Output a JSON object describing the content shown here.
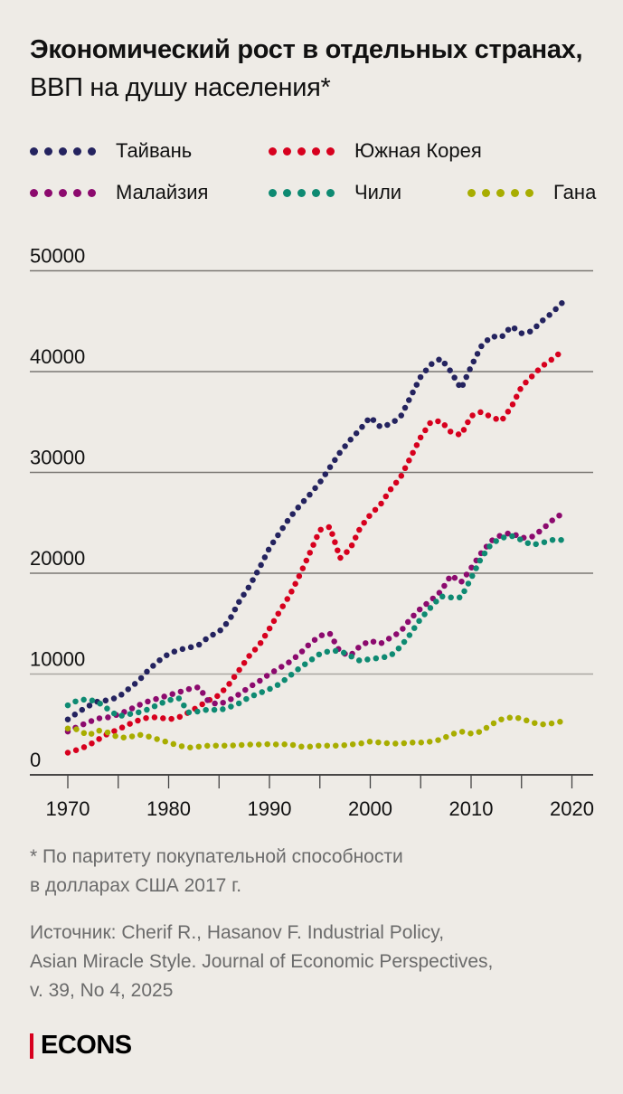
{
  "title": {
    "bold": "Экономический рост в отдельных странах,",
    "regular": "ВВП на душу населения*"
  },
  "legend": [
    {
      "name": "Тайвань",
      "color": "#24235F"
    },
    {
      "name": "Южная Корея",
      "color": "#D7001E"
    },
    {
      "name": "Малайзия",
      "color": "#8C0A6E"
    },
    {
      "name": "Чили",
      "color": "#0E8A72"
    },
    {
      "name": "Гана",
      "color": "#A8AD00"
    }
  ],
  "footnote": "* По паритету покупательной способности в долларах США 2017 г.",
  "footnote_lines": [
    "* По паритету покупательной способности",
    "в долларах США 2017 г."
  ],
  "source_lines": [
    "Источник: Cherif R., Hasanov F. Industrial Policy,",
    "Asian Miracle Style. Journal of Economic Perspectives,",
    "v. 39, No 4, 2025"
  ],
  "logo": "ECONS",
  "chart_data": {
    "type": "line",
    "title": "Экономический рост в отдельных странах, ВВП на душу населения*",
    "xlabel": "",
    "ylabel": "",
    "xlim": [
      1967,
      2023
    ],
    "ylim": [
      0,
      50000
    ],
    "x_ticks": [
      1970,
      1975,
      1980,
      1985,
      1990,
      1995,
      2000,
      2005,
      2010,
      2015,
      2020
    ],
    "x_tick_labels": [
      "1970",
      "1980",
      "1990",
      "2000",
      "2010",
      "2020"
    ],
    "y_ticks": [
      0,
      10000,
      20000,
      30000,
      40000,
      50000
    ],
    "y_tick_labels": [
      "0",
      "10000",
      "20000",
      "30000",
      "40000",
      "50000"
    ],
    "grid": "horizontal",
    "legend_position": "top",
    "line_style": "dotted",
    "x": [
      1970,
      1971,
      1972,
      1973,
      1974,
      1975,
      1976,
      1977,
      1978,
      1979,
      1980,
      1981,
      1982,
      1983,
      1984,
      1985,
      1986,
      1987,
      1988,
      1989,
      1990,
      1991,
      1992,
      1993,
      1994,
      1995,
      1996,
      1997,
      1998,
      1999,
      2000,
      2001,
      2002,
      2003,
      2004,
      2005,
      2006,
      2007,
      2008,
      2009,
      2010,
      2011,
      2012,
      2013,
      2014,
      2015,
      2016,
      2017,
      2018,
      2019
    ],
    "series": [
      {
        "name": "Тайвань",
        "color": "#24235F",
        "values": [
          5500,
          6200,
          6800,
          7300,
          7400,
          7700,
          8500,
          9300,
          10400,
          11300,
          12000,
          12400,
          12600,
          12900,
          13700,
          14200,
          15300,
          17200,
          18700,
          20500,
          22500,
          24000,
          25500,
          26700,
          27800,
          29000,
          30500,
          32000,
          33200,
          34300,
          35500,
          34500,
          34800,
          35500,
          37500,
          39500,
          40700,
          41300,
          40000,
          38300,
          40500,
          42500,
          43500,
          43400,
          44500,
          43800,
          44000,
          45000,
          45800,
          46800
        ]
      },
      {
        "name": "Южная Корея",
        "color": "#D7001E",
        "values": [
          2200,
          2500,
          2900,
          3500,
          4100,
          4500,
          5000,
          5400,
          5700,
          5700,
          5500,
          5700,
          6200,
          6800,
          7400,
          7900,
          9000,
          10400,
          11800,
          12900,
          14500,
          16200,
          17800,
          19800,
          22000,
          24300,
          24600,
          21500,
          22400,
          24500,
          25800,
          26800,
          28300,
          29500,
          31500,
          33500,
          35000,
          35100,
          34000,
          33700,
          35600,
          36000,
          35500,
          35100,
          36500,
          38500,
          39500,
          40500,
          41200,
          42000
        ]
      },
      {
        "name": "Малайзия",
        "color": "#8C0A6E",
        "values": [
          4300,
          4800,
          5200,
          5600,
          5700,
          6000,
          6400,
          6900,
          7300,
          7600,
          7900,
          8200,
          8500,
          8700,
          7200,
          7000,
          7400,
          8000,
          8700,
          9300,
          10000,
          10600,
          11200,
          12000,
          13000,
          13800,
          14000,
          12200,
          11800,
          12800,
          13300,
          13000,
          13600,
          14200,
          15500,
          16500,
          17300,
          18200,
          19800,
          19100,
          20500,
          22000,
          23200,
          23800,
          24000,
          23500,
          23600,
          24300,
          25200,
          25900
        ]
      },
      {
        "name": "Чили",
        "color": "#0E8A72",
        "values": [
          6900,
          7400,
          7500,
          7200,
          6500,
          5800,
          6000,
          6200,
          6500,
          7000,
          7400,
          7600,
          6200,
          6300,
          6500,
          6400,
          6700,
          7100,
          7700,
          8100,
          8500,
          9000,
          9800,
          10600,
          11300,
          12000,
          12300,
          12300,
          11800,
          11300,
          11500,
          11600,
          11800,
          12700,
          14000,
          15500,
          16600,
          17700,
          17600,
          17600,
          19500,
          21500,
          22900,
          23500,
          23700,
          23300,
          22800,
          23000,
          23300,
          23300
        ]
      },
      {
        "name": "Гана",
        "color": "#A8AD00",
        "values": [
          4600,
          4500,
          3900,
          4400,
          4200,
          3700,
          3700,
          4000,
          3800,
          3500,
          3200,
          2900,
          2700,
          2800,
          2900,
          2900,
          2900,
          2950,
          3000,
          3000,
          3050,
          3000,
          3050,
          2800,
          2800,
          2900,
          2900,
          2900,
          3000,
          3100,
          3300,
          3200,
          3100,
          3100,
          3200,
          3200,
          3300,
          3500,
          4000,
          4300,
          4100,
          4300,
          5000,
          5500,
          5700,
          5600,
          5200,
          5000,
          5100,
          5300
        ]
      }
    ]
  }
}
